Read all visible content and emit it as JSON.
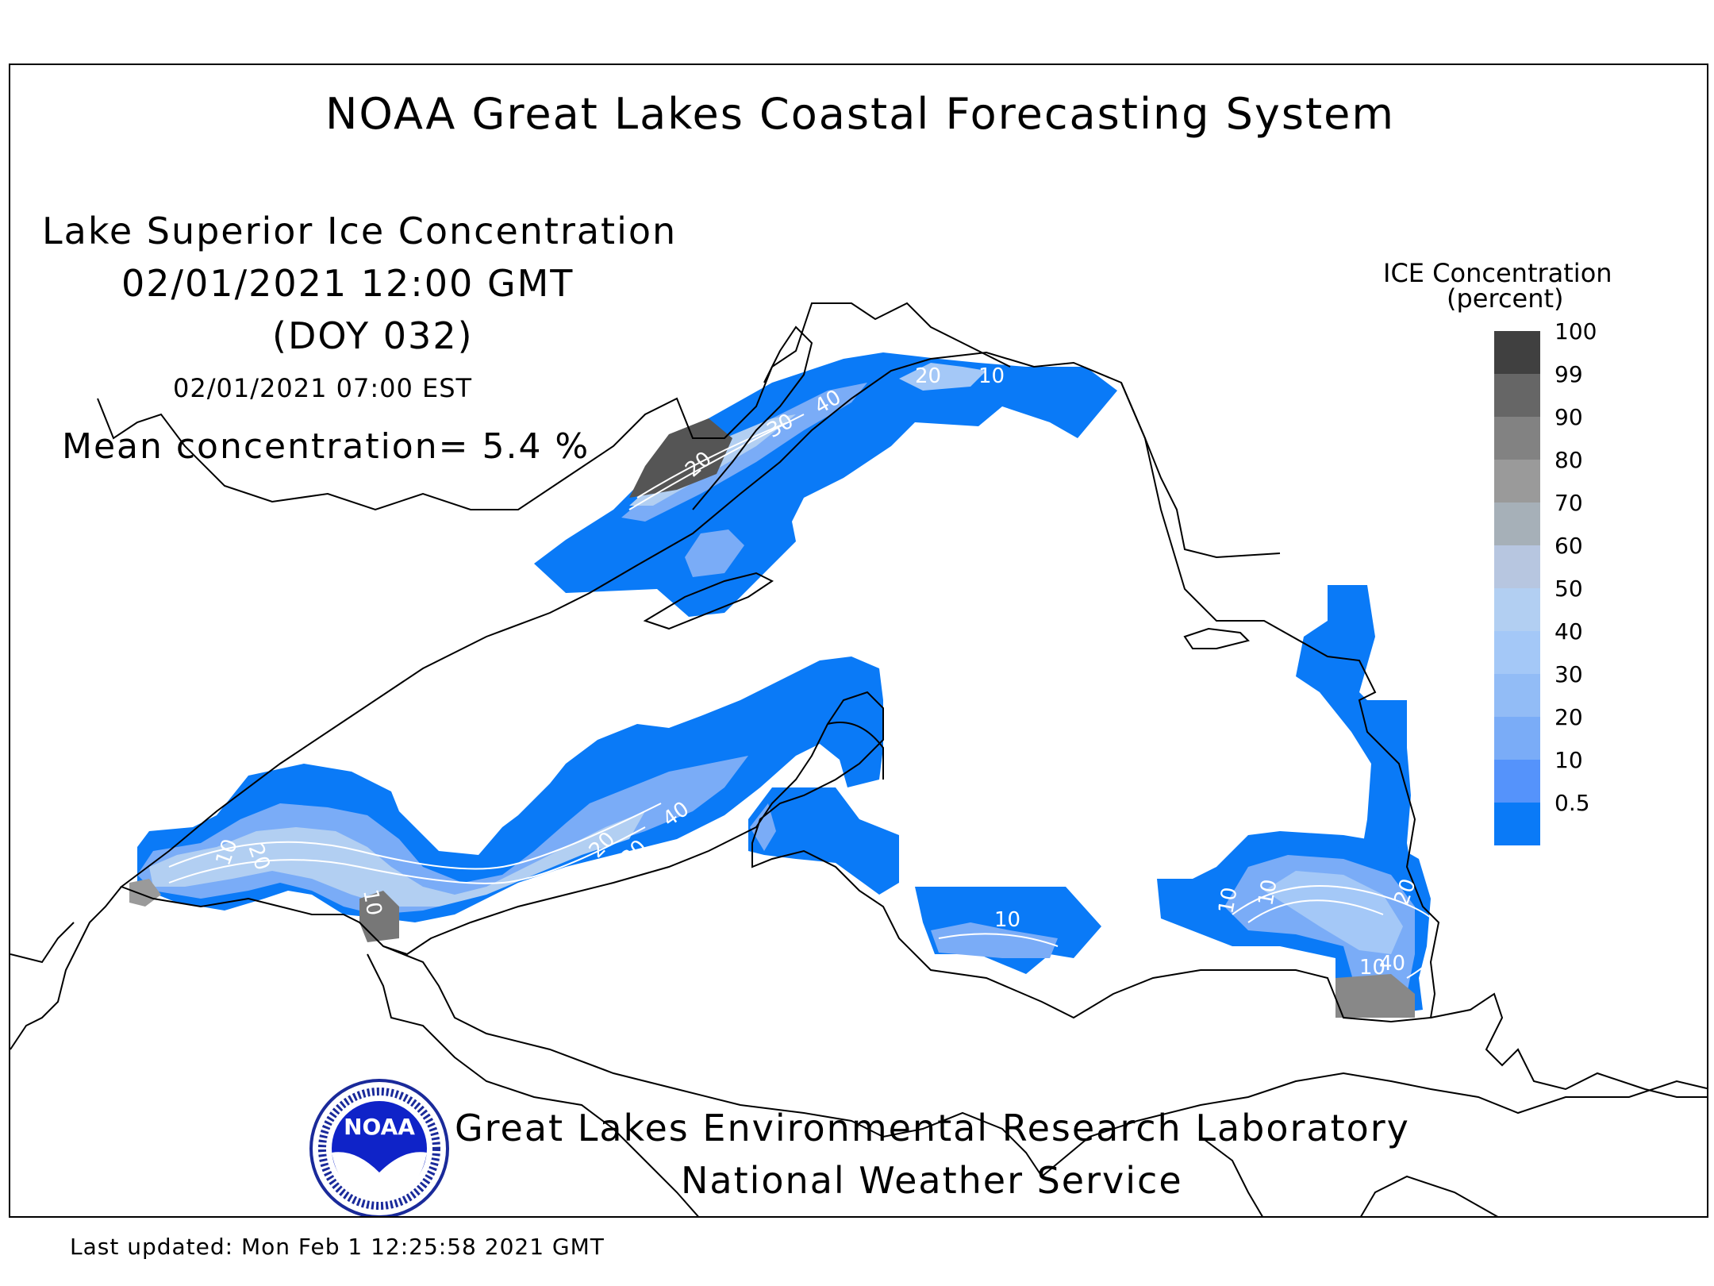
{
  "header": {
    "title": "NOAA Great Lakes Coastal Forecasting System"
  },
  "map_info": {
    "subtitle": "Lake Superior Ice Concentration",
    "datetime_gmt": "02/01/2021 12:00 GMT",
    "doy": "(DOY 032)",
    "datetime_est": "02/01/2021 07:00 EST",
    "mean_concentration": "Mean concentration= 5.4 %"
  },
  "legend": {
    "title_line1": "ICE Concentration",
    "title_line2": "(percent)",
    "items": [
      {
        "label": "100",
        "color": "#404040"
      },
      {
        "label": "99",
        "color": "#666666"
      },
      {
        "label": "90",
        "color": "#828282"
      },
      {
        "label": "80",
        "color": "#9a9a9a"
      },
      {
        "label": "70",
        "color": "#a6b0b8"
      },
      {
        "label": "60",
        "color": "#b7c6e0"
      },
      {
        "label": "50",
        "color": "#b2cff2"
      },
      {
        "label": "40",
        "color": "#a4c8f7"
      },
      {
        "label": "30",
        "color": "#92bcf6"
      },
      {
        "label": "20",
        "color": "#7aacf7"
      },
      {
        "label": "10",
        "color": "#5593fb"
      },
      {
        "label": "0.5",
        "color": "#0a7af7"
      }
    ]
  },
  "contour_labels": [
    "10",
    "20",
    "10",
    "20",
    "40",
    "30",
    "10",
    "20",
    "40",
    "30",
    "10",
    "20",
    "10",
    "20",
    "40",
    "10",
    "10"
  ],
  "credits": {
    "line1": "Great Lakes Environmental Research Laboratory",
    "line2": "National Weather Service",
    "logo_text": "NOAA"
  },
  "footer": {
    "last_updated": "Last updated: Mon Feb  1 12:25:58 2021 GMT"
  },
  "colors": {
    "ice_low": "#0a7af7",
    "ice_high": "#404040",
    "background": "#ffffff",
    "coastline": "#000000"
  }
}
